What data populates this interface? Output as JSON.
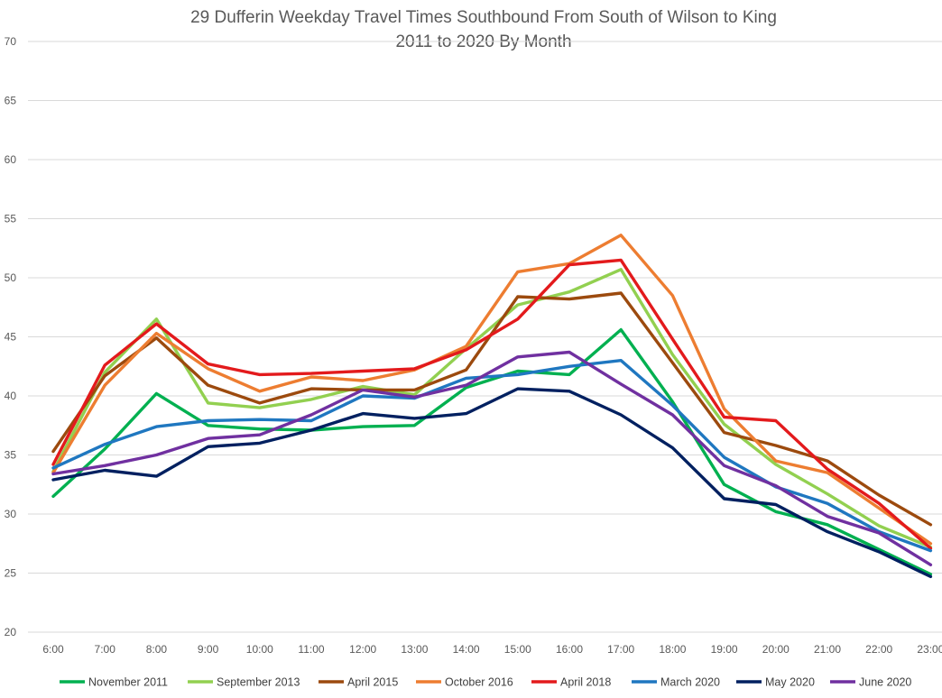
{
  "chart_data": {
    "type": "line",
    "title": "29 Dufferin Weekday Travel Times Southbound From South of Wilson to King",
    "subtitle": "2011 to 2020 By Month",
    "xlabel": "",
    "ylabel": "",
    "categories": [
      "6:00",
      "7:00",
      "8:00",
      "9:00",
      "10:00",
      "11:00",
      "12:00",
      "13:00",
      "14:00",
      "15:00",
      "16:00",
      "17:00",
      "18:00",
      "19:00",
      "20:00",
      "21:00",
      "22:00",
      "23:00"
    ],
    "ylim": [
      20,
      70
    ],
    "yticks": [
      20,
      25,
      30,
      35,
      40,
      45,
      50,
      55,
      60,
      65,
      70
    ],
    "grid": true,
    "legend_position": "bottom",
    "series": [
      {
        "name": "November 2011",
        "color": "#00b050",
        "values": [
          31.5,
          35.5,
          40.2,
          37.5,
          37.2,
          37.1,
          37.4,
          37.5,
          40.7,
          42.1,
          41.8,
          45.6,
          39.5,
          32.5,
          30.2,
          29.1,
          27.0,
          24.9
        ]
      },
      {
        "name": "September 2013",
        "color": "#92d050",
        "values": [
          33.6,
          42.0,
          46.5,
          39.4,
          39.0,
          39.7,
          40.8,
          40.1,
          44.0,
          47.7,
          48.8,
          50.7,
          43.5,
          37.6,
          34.2,
          31.7,
          29.0,
          27.2
        ]
      },
      {
        "name": "April 2015",
        "color": "#9c4a0e",
        "values": [
          35.3,
          41.7,
          44.9,
          40.9,
          39.4,
          40.6,
          40.5,
          40.5,
          42.2,
          48.4,
          48.2,
          48.7,
          42.8,
          36.9,
          35.8,
          34.5,
          31.6,
          29.1
        ]
      },
      {
        "name": "October 2016",
        "color": "#ed7d31",
        "values": [
          33.5,
          40.9,
          45.3,
          42.3,
          40.4,
          41.6,
          41.3,
          42.2,
          44.2,
          50.5,
          51.2,
          53.6,
          48.5,
          38.9,
          34.5,
          33.5,
          30.5,
          27.5
        ]
      },
      {
        "name": "April 2018",
        "color": "#e31a1c",
        "values": [
          34.2,
          42.6,
          46.1,
          42.7,
          41.8,
          41.9,
          42.1,
          42.3,
          43.9,
          46.5,
          51.1,
          51.5,
          44.8,
          38.2,
          37.9,
          33.8,
          30.9,
          27.1
        ]
      },
      {
        "name": "March 2020",
        "color": "#1f77c0",
        "values": [
          33.9,
          35.9,
          37.4,
          37.9,
          38.0,
          37.9,
          40.0,
          39.8,
          41.5,
          41.8,
          42.5,
          43.0,
          39.2,
          34.8,
          32.3,
          30.9,
          28.5,
          26.9
        ]
      },
      {
        "name": "May 2020",
        "color": "#002060",
        "values": [
          32.9,
          33.7,
          33.2,
          35.7,
          36.0,
          37.1,
          38.5,
          38.1,
          38.5,
          40.6,
          40.4,
          38.4,
          35.6,
          31.3,
          30.8,
          28.5,
          26.8,
          24.7
        ]
      },
      {
        "name": "June 2020",
        "color": "#7030a0",
        "values": [
          33.4,
          34.1,
          35.0,
          36.4,
          36.7,
          38.4,
          40.5,
          39.9,
          40.9,
          43.3,
          43.7,
          41.0,
          38.4,
          34.1,
          32.4,
          29.8,
          28.4,
          25.7
        ]
      }
    ]
  }
}
